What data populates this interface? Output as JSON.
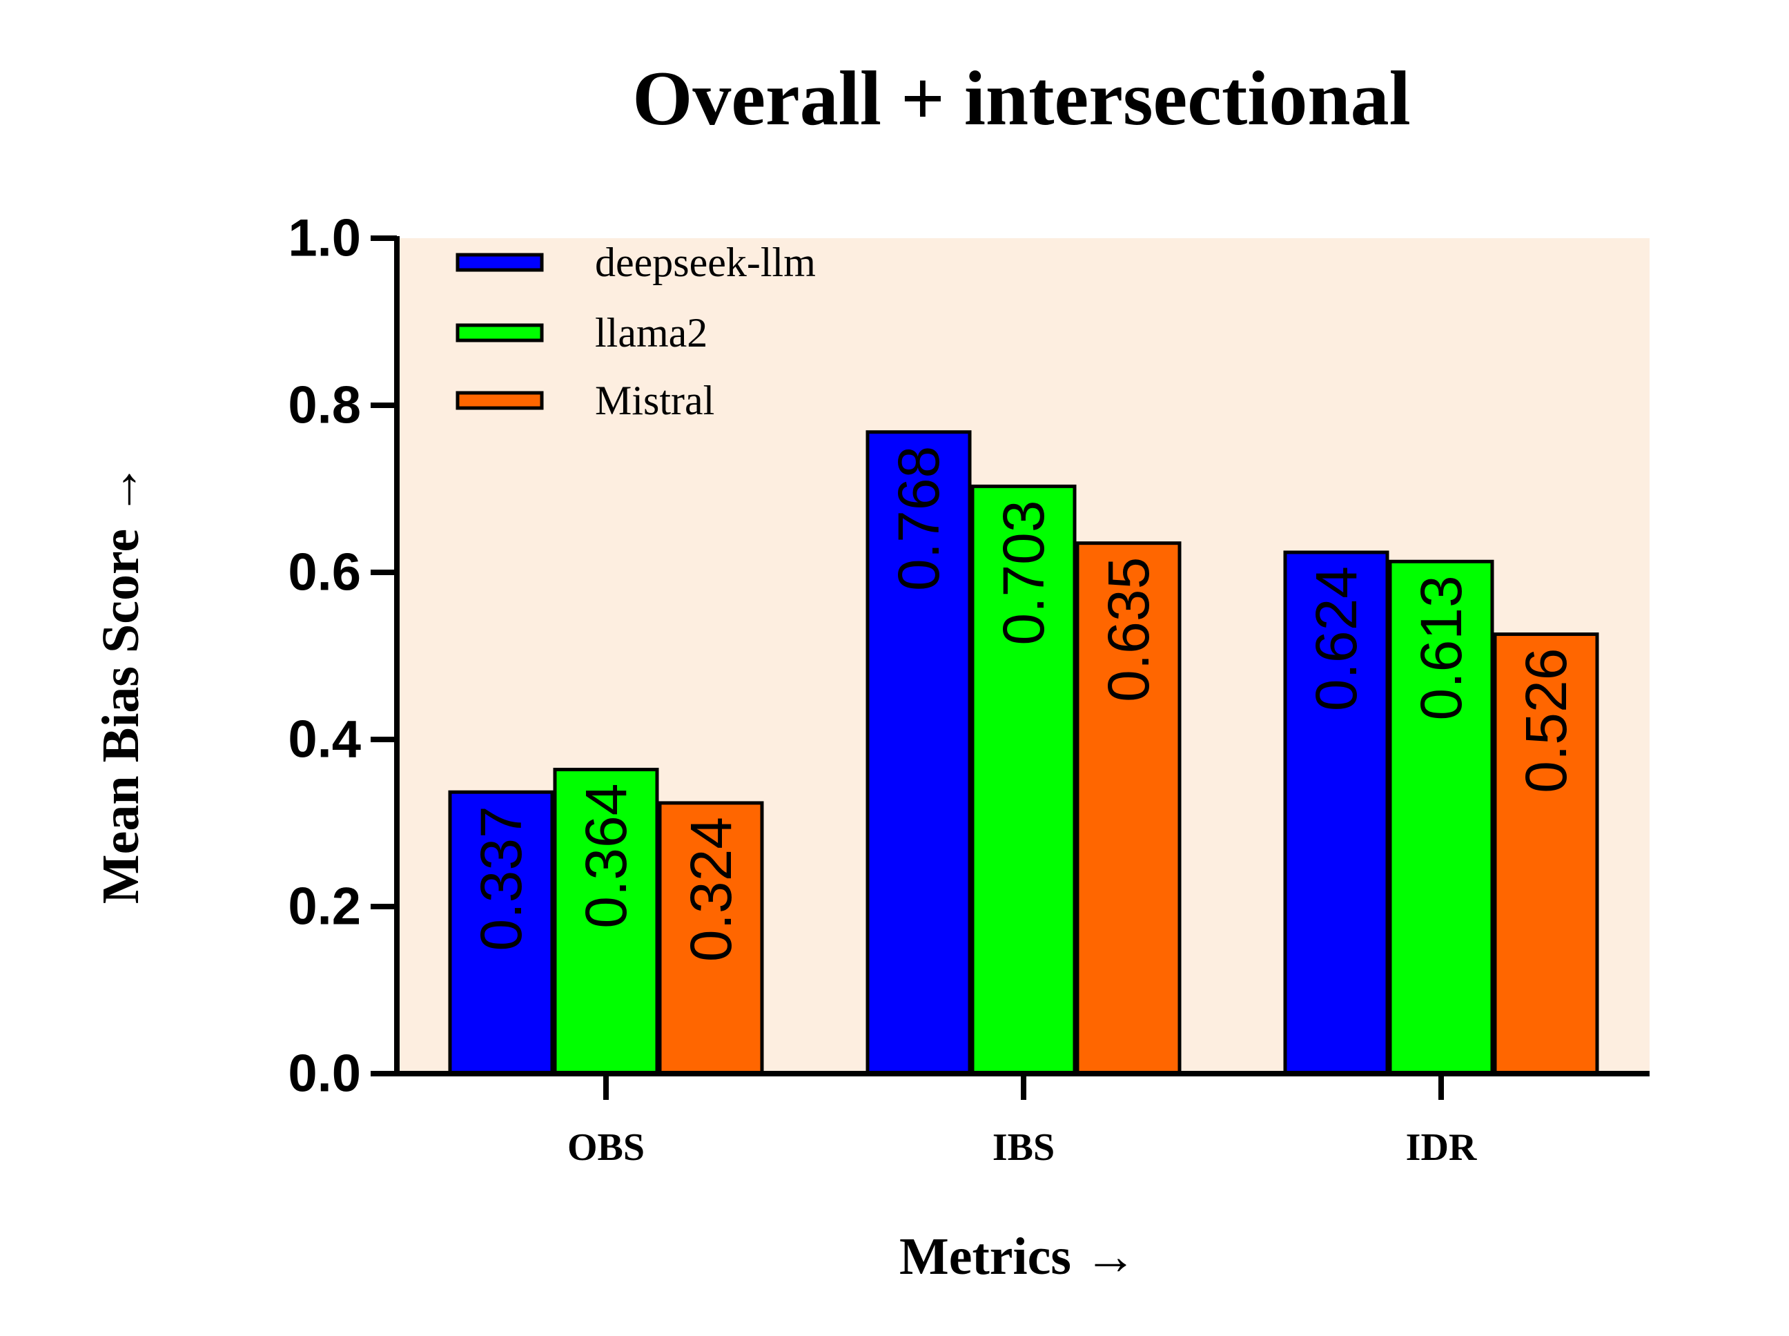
{
  "chart_data": {
    "type": "bar",
    "title": "Overall + intersectional",
    "xlabel": "Metrics →",
    "ylabel": "Mean Bias Score →",
    "categories": [
      "OBS",
      "IBS",
      "IDR"
    ],
    "series": [
      {
        "name": "deepseek-llm",
        "color": "#0000ff",
        "values": [
          0.337,
          0.768,
          0.624
        ],
        "labels": [
          "0.337",
          "0.768",
          "0.624"
        ]
      },
      {
        "name": "llama2",
        "color": "#00ff00",
        "values": [
          0.364,
          0.703,
          0.613
        ],
        "labels": [
          "0.364",
          "0.703",
          "0.613"
        ]
      },
      {
        "name": "Mistral",
        "color": "#ff6600",
        "values": [
          0.324,
          0.635,
          0.526
        ],
        "labels": [
          "0.324",
          "0.635",
          "0.526"
        ]
      }
    ],
    "ylim": [
      0,
      1.0
    ],
    "yticks": [
      "0.0",
      "0.2",
      "0.4",
      "0.6",
      "0.8",
      "1.0"
    ],
    "plot_background": "#fdeee0",
    "grid": false,
    "legend_position": "top-left",
    "data_labels": "inside bars, rotated vertical"
  }
}
